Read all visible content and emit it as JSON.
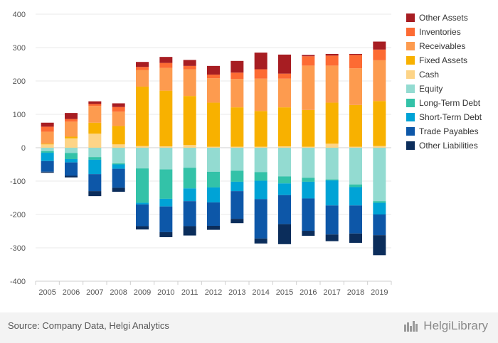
{
  "chart_data": {
    "type": "bar",
    "stacked": true,
    "categories": [
      "2005",
      "2006",
      "2007",
      "2008",
      "2009",
      "2010",
      "2011",
      "2012",
      "2013",
      "2014",
      "2015",
      "2016",
      "2017",
      "2018",
      "2019"
    ],
    "ylim": [
      -400,
      400
    ],
    "yticks": [
      -400,
      -300,
      -200,
      -100,
      0,
      100,
      200,
      300,
      400
    ],
    "grid": true,
    "legend_position": "right",
    "positive_series": [
      {
        "name": "Cash",
        "color": "#fdd487",
        "values": [
          10,
          28,
          42,
          10,
          5,
          4,
          8,
          3,
          3,
          3,
          4,
          3,
          12,
          3,
          5
        ]
      },
      {
        "name": "Fixed Assets",
        "color": "#f8b100",
        "values": [
          2,
          5,
          33,
          55,
          178,
          167,
          147,
          132,
          118,
          107,
          117,
          110,
          123,
          125,
          135
        ]
      },
      {
        "name": "Receivables",
        "color": "#fd9b4f",
        "values": [
          36,
          45,
          50,
          43,
          50,
          68,
          80,
          73,
          85,
          97,
          86,
          133,
          111,
          110,
          122
        ]
      },
      {
        "name": "Inventories",
        "color": "#fd6b33",
        "values": [
          15,
          8,
          6,
          14,
          9,
          15,
          10,
          11,
          19,
          28,
          15,
          28,
          30,
          40,
          32
        ]
      },
      {
        "name": "Other Assets",
        "color": "#a71d22",
        "values": [
          12,
          18,
          8,
          11,
          15,
          18,
          18,
          26,
          35,
          50,
          57,
          4,
          5,
          3,
          24
        ]
      }
    ],
    "negative_series": [
      {
        "name": "Equity",
        "color": "#93dbd1",
        "values": [
          -10,
          -16,
          -28,
          -47,
          -62,
          -65,
          -60,
          -72,
          -69,
          -73,
          -86,
          -90,
          -95,
          -110,
          -160
        ]
      },
      {
        "name": "Long-Term Debt",
        "color": "#33c2a8",
        "values": [
          -5,
          -18,
          -8,
          -3,
          -103,
          -88,
          -62,
          -47,
          -33,
          -26,
          -21,
          -12,
          -3,
          -8,
          -5
        ]
      },
      {
        "name": "Short-Term Debt",
        "color": "#00a3d6",
        "values": [
          -25,
          -10,
          -43,
          -13,
          -5,
          -23,
          -38,
          -45,
          -28,
          -55,
          -35,
          -50,
          -75,
          -55,
          -35
        ]
      },
      {
        "name": "Trade Payables",
        "color": "#0d57a8",
        "values": [
          -32,
          -40,
          -51,
          -57,
          -65,
          -77,
          -75,
          -70,
          -83,
          -118,
          -87,
          -97,
          -87,
          -84,
          -62
        ]
      },
      {
        "name": "Other Liabilities",
        "color": "#0b2d5b",
        "values": [
          -3,
          -5,
          -15,
          -12,
          -10,
          -15,
          -28,
          -12,
          -13,
          -15,
          -60,
          -15,
          -20,
          -28,
          -60
        ]
      }
    ],
    "legend_order": [
      "Other Assets",
      "Inventories",
      "Receivables",
      "Fixed Assets",
      "Cash",
      "Equity",
      "Long-Term Debt",
      "Short-Term Debt",
      "Trade Payables",
      "Other Liabilities"
    ]
  },
  "footer": {
    "source": "Source: Company Data, Helgi Analytics",
    "brand": "HelgiLibrary"
  }
}
